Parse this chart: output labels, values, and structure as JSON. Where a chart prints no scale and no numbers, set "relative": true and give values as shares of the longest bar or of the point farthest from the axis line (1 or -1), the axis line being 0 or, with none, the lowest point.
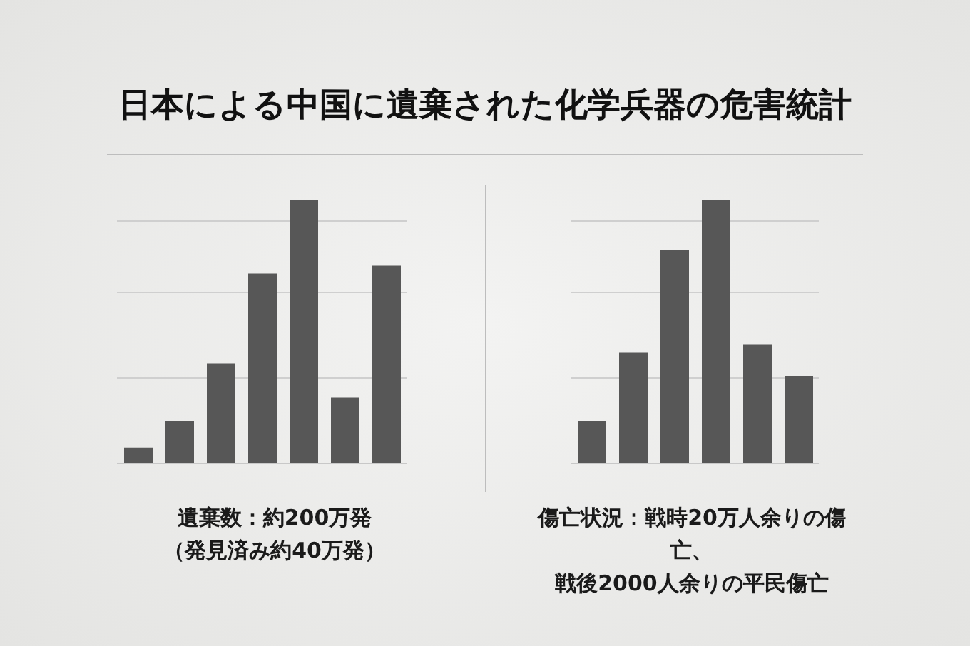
{
  "chart_data": [
    {
      "type": "bar",
      "title": "日本による中国に遺棄された化学兵器の危害統計",
      "relative": true,
      "grid": "y",
      "color": "#575757",
      "categories": [
        null,
        null,
        null,
        null,
        null,
        null,
        null
      ],
      "values": [
        0.06,
        0.16,
        0.38,
        0.72,
        1,
        0.25,
        0.75
      ],
      "annotations": [
        "遺棄数：約200万発",
        "（発見済み約40万発）"
      ]
    },
    {
      "type": "bar",
      "relative": true,
      "grid": "y",
      "color": "#575757",
      "categories": [
        null,
        null,
        null,
        null,
        null,
        null
      ],
      "values": [
        0.16,
        0.42,
        0.81,
        1,
        0.45,
        0.33
      ],
      "annotations": [
        "傷亡状況：戦時20万人余りの傷亡、",
        "戦後2000人余りの平民傷亡"
      ]
    }
  ]
}
